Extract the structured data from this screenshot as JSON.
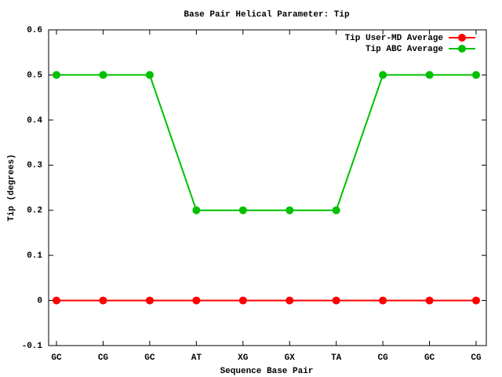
{
  "chart_data": {
    "type": "line",
    "title": "Base Pair Helical Parameter: Tip",
    "x_label": "Sequence Base Pair",
    "y_label": "Tip (degrees)",
    "categories": [
      "GC",
      "CG",
      "GC",
      "AT",
      "XG",
      "GX",
      "TA",
      "CG",
      "GC",
      "CG"
    ],
    "series": [
      {
        "name": "Tip User-MD Average",
        "color": "#ff0000",
        "values": [
          0,
          0,
          0,
          0,
          0,
          0,
          0,
          0,
          0,
          0
        ]
      },
      {
        "name": "Tip ABC Average",
        "color": "#00c000",
        "values": [
          0.5,
          0.5,
          0.5,
          0.2,
          0.2,
          0.2,
          0.2,
          0.5,
          0.5,
          0.5
        ]
      }
    ],
    "ylim": [
      -0.1,
      0.6
    ],
    "yticks": [
      -0.1,
      0,
      0.1,
      0.2,
      0.3,
      0.4,
      0.5,
      0.6
    ],
    "legend": "upper-right"
  }
}
